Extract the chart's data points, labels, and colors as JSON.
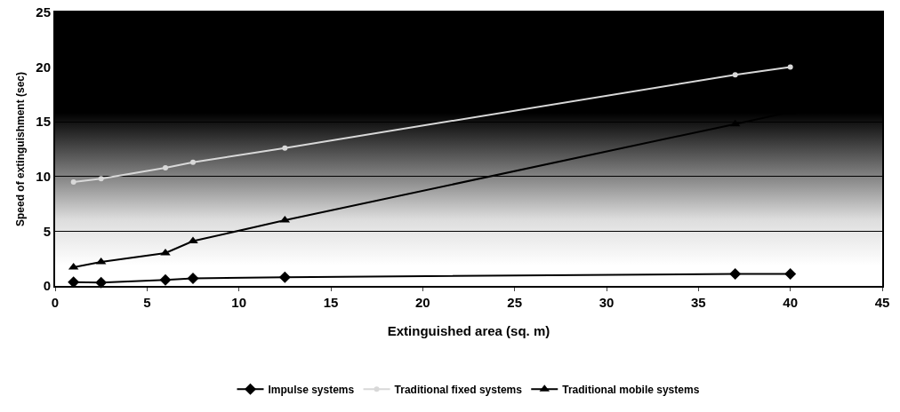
{
  "chart_data": {
    "type": "line",
    "xlabel": "Extinguished area (sq. m)",
    "ylabel": "Speed of extinguishment (sec)",
    "x": [
      1,
      2.5,
      6,
      7.5,
      12.5,
      37,
      40
    ],
    "series": [
      {
        "name": "Impulse systems",
        "color": "#000000",
        "marker": "diamond",
        "values": [
          0.35,
          0.3,
          0.55,
          0.7,
          0.8,
          1.1,
          1.1
        ]
      },
      {
        "name": "Traditional fixed systems",
        "color": "#d8d8d8",
        "marker": "circle",
        "values": [
          9.5,
          9.8,
          10.8,
          11.3,
          12.6,
          19.3,
          20.0
        ]
      },
      {
        "name": "Traditional mobile systems",
        "color": "#000000",
        "marker": "triangle",
        "values": [
          1.7,
          2.2,
          3.0,
          4.1,
          6.0,
          14.8,
          15.9
        ]
      }
    ],
    "xlim": [
      0,
      45
    ],
    "xticks": [
      0,
      5,
      10,
      15,
      20,
      25,
      30,
      35,
      40,
      45
    ],
    "ylim": [
      0,
      25
    ],
    "yticks": [
      0,
      5,
      10,
      15,
      20,
      25
    ],
    "grid": "y",
    "legend": "bottom",
    "line_style": "solid"
  }
}
